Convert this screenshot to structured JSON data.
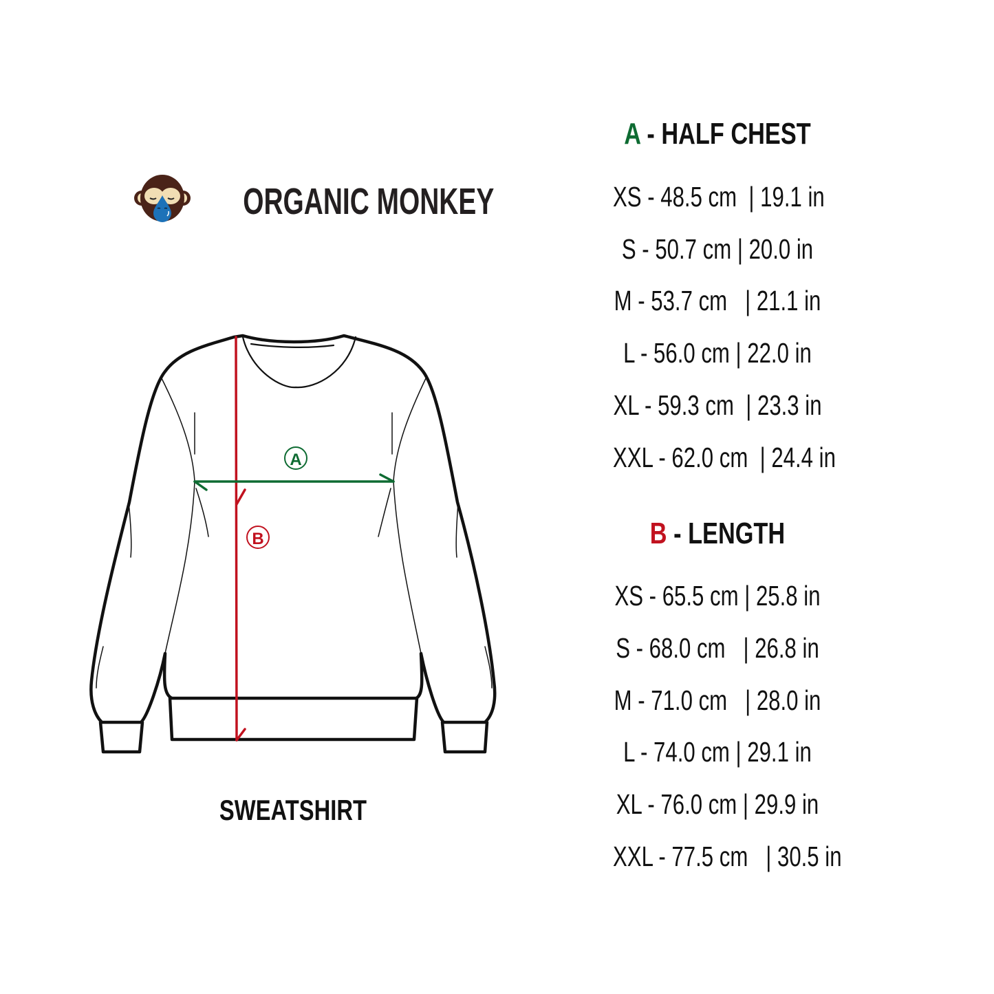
{
  "brand": {
    "name": "ORGANIC MONKEY",
    "logo_icon": "monkey-face-logo"
  },
  "garment": {
    "label": "SWEATSHIRT",
    "marker_a": "A",
    "marker_b": "B"
  },
  "colors": {
    "a": "#0e6b32",
    "b": "#c1121f",
    "text": "#111111"
  },
  "half_chest": {
    "letter": "A",
    "title": " - HALF CHEST",
    "rows": [
      "XS - 48.5 cm  | 19.1 in",
      "S - 50.7 cm | 20.0 in",
      "M - 53.7 cm   | 21.1 in",
      "L - 56.0 cm | 22.0 in",
      "XL - 59.3 cm  | 23.3 in",
      "XXL - 62.0 cm  | 24.4 in"
    ]
  },
  "length": {
    "letter": "B",
    "title": " - LENGTH",
    "rows": [
      "XS - 65.5 cm | 25.8 in",
      "S - 68.0 cm   | 26.8 in",
      "M - 71.0 cm   | 28.0 in",
      "L - 74.0 cm | 29.1 in",
      "XL - 76.0 cm | 29.9 in",
      "XXL - 77.5 cm   | 30.5 in"
    ]
  }
}
